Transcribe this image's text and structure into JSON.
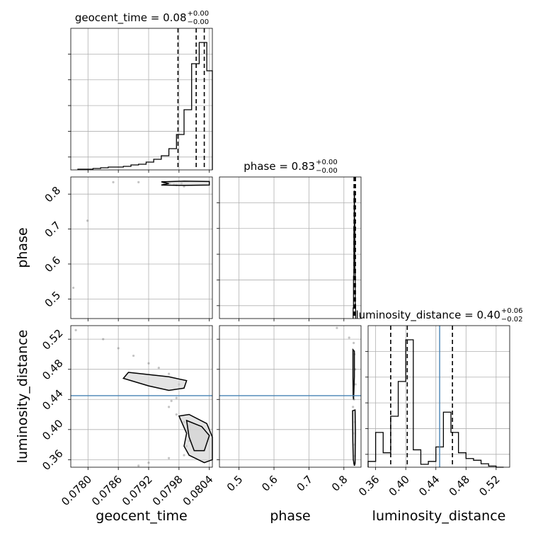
{
  "chart_data": {
    "type": "corner",
    "parameters": [
      "geocent_time",
      "phase",
      "luminosity_distance"
    ],
    "axis_labels": {
      "geocent_time": "geocent_time",
      "phase": "phase",
      "luminosity_distance": "luminosity_distance"
    },
    "ranges": {
      "geocent_time": [
        0.07766,
        0.08046
      ],
      "phase": [
        0.444,
        0.849
      ],
      "luminosity_distance": [
        0.35,
        0.538
      ]
    },
    "ticks": {
      "geocent_time": {
        "values": [
          0.078,
          0.0786,
          0.0792,
          0.0798,
          0.0804
        ],
        "labels": [
          "0.0780",
          "0.0786",
          "0.0792",
          "0.0798",
          "0.0804"
        ]
      },
      "phase": {
        "values": [
          0.5,
          0.6,
          0.7,
          0.8
        ],
        "labels": [
          "0.5",
          "0.6",
          "0.7",
          "0.8"
        ]
      },
      "luminosity_distance": {
        "values": [
          0.36,
          0.4,
          0.44,
          0.48,
          0.52
        ],
        "labels": [
          "0.36",
          "0.40",
          "0.44",
          "0.48",
          "0.52"
        ]
      }
    },
    "titles": {
      "geocent_time": {
        "main": "geocent_time = 0.08",
        "plus": "+0.00",
        "minus": "−0.00"
      },
      "phase": {
        "main": "phase = 0.83",
        "plus": "+0.00",
        "minus": "−0.00"
      },
      "luminosity_distance": {
        "main": "luminosity_distance = 0.40",
        "plus": "+0.06",
        "minus": "−0.02"
      }
    },
    "quantiles": {
      "geocent_time": [
        0.07978,
        0.08014,
        0.0803
      ],
      "phase": [
        0.829,
        0.831,
        0.833
      ],
      "luminosity_distance": [
        0.38,
        0.402,
        0.462
      ]
    },
    "truths": {
      "luminosity_distance": 0.445
    },
    "histograms": {
      "geocent_time": {
        "bin_edges": [
          0.0778,
          0.07795,
          0.0781,
          0.07825,
          0.0784,
          0.07855,
          0.0787,
          0.07885,
          0.079,
          0.07915,
          0.0793,
          0.07945,
          0.0796,
          0.07975,
          0.0799,
          0.08005,
          0.0802,
          0.08035,
          0.0805
        ],
        "counts": [
          1,
          1,
          2,
          3,
          4,
          4,
          5,
          7,
          8,
          11,
          15,
          20,
          30,
          50,
          85,
          150,
          180,
          140
        ]
      },
      "phase": {
        "bin_edges": [
          0.8265,
          0.8275,
          0.8285,
          0.8295,
          0.8305,
          0.8315,
          0.8325,
          0.8335
        ],
        "counts": [
          15,
          60,
          130,
          180,
          140,
          70,
          20
        ]
      },
      "luminosity_distance": {
        "bin_edges": [
          0.35,
          0.36,
          0.37,
          0.38,
          0.39,
          0.4,
          0.41,
          0.42,
          0.43,
          0.44,
          0.45,
          0.46,
          0.47,
          0.48,
          0.49,
          0.5,
          0.51,
          0.52,
          0.53
        ],
        "counts": [
          10,
          60,
          25,
          88,
          148,
          220,
          30,
          5,
          10,
          35,
          95,
          60,
          25,
          15,
          12,
          6,
          2,
          0
        ]
      }
    },
    "scatter": {
      "geocent_time__phase": [
        [
          0.07962,
          0.83
        ],
        [
          0.07975,
          0.826
        ],
        [
          0.07799,
          0.724
        ],
        [
          0.07771,
          0.532
        ],
        [
          0.07985,
          0.831
        ],
        [
          0.0795,
          0.832
        ],
        [
          0.079,
          0.834
        ],
        [
          0.0785,
          0.834
        ],
        [
          0.0799,
          0.822
        ],
        [
          0.0797,
          0.827
        ]
      ],
      "geocent_time__luminosity_distance": [
        [
          0.07776,
          0.532
        ],
        [
          0.0783,
          0.52
        ],
        [
          0.0786,
          0.508
        ],
        [
          0.0789,
          0.498
        ],
        [
          0.0792,
          0.488
        ],
        [
          0.0794,
          0.482
        ],
        [
          0.0796,
          0.474
        ],
        [
          0.0798,
          0.46
        ],
        [
          0.07975,
          0.442
        ],
        [
          0.07965,
          0.438
        ],
        [
          0.0796,
          0.43
        ],
        [
          0.07975,
          0.42
        ],
        [
          0.0799,
          0.41
        ],
        [
          0.07995,
          0.398
        ],
        [
          0.08,
          0.385
        ],
        [
          0.07995,
          0.378
        ],
        [
          0.0799,
          0.366
        ],
        [
          0.0796,
          0.362
        ],
        [
          0.0792,
          0.356
        ],
        [
          0.079,
          0.352
        ]
      ],
      "phase__luminosity_distance": [
        [
          0.78,
          0.535
        ],
        [
          0.815,
          0.522
        ],
        [
          0.828,
          0.515
        ],
        [
          0.83,
          0.5
        ],
        [
          0.832,
          0.48
        ],
        [
          0.833,
          0.46
        ],
        [
          0.829,
          0.44
        ],
        [
          0.826,
          0.43
        ],
        [
          0.831,
          0.41
        ],
        [
          0.828,
          0.395
        ],
        [
          0.83,
          0.38
        ],
        [
          0.831,
          0.365
        ],
        [
          0.829,
          0.355
        ]
      ]
    },
    "contours": {
      "geocent_time__phase": [
        [
          [
            0.07945,
            0.826
          ],
          [
            0.0799,
            0.825
          ],
          [
            0.0804,
            0.826
          ],
          [
            0.0804,
            0.836
          ],
          [
            0.0799,
            0.837
          ],
          [
            0.07945,
            0.835
          ],
          [
            0.0796,
            0.83
          ],
          [
            0.07945,
            0.826
          ]
        ]
      ],
      "geocent_time__luminosity_distance": [
        [
          [
            0.0788,
            0.476
          ],
          [
            0.0796,
            0.47
          ],
          [
            0.07995,
            0.465
          ],
          [
            0.0799,
            0.455
          ],
          [
            0.0796,
            0.452
          ],
          [
            0.0792,
            0.458
          ],
          [
            0.0787,
            0.468
          ],
          [
            0.0788,
            0.476
          ]
        ],
        [
          [
            0.0798,
            0.418
          ],
          [
            0.08,
            0.42
          ],
          [
            0.08035,
            0.408
          ],
          [
            0.08046,
            0.39
          ],
          [
            0.08046,
            0.36
          ],
          [
            0.0803,
            0.356
          ],
          [
            0.08,
            0.366
          ],
          [
            0.0799,
            0.378
          ],
          [
            0.07995,
            0.395
          ],
          [
            0.0798,
            0.418
          ]
        ],
        [
          [
            0.07995,
            0.412
          ],
          [
            0.08025,
            0.404
          ],
          [
            0.0804,
            0.392
          ],
          [
            0.0803,
            0.372
          ],
          [
            0.0801,
            0.372
          ],
          [
            0.08,
            0.39
          ],
          [
            0.07995,
            0.412
          ]
        ]
      ],
      "phase__luminosity_distance": [
        [
          [
            0.826,
            0.506
          ],
          [
            0.83,
            0.504
          ],
          [
            0.83,
            0.47
          ],
          [
            0.8285,
            0.45
          ],
          [
            0.8275,
            0.44
          ],
          [
            0.8265,
            0.445
          ],
          [
            0.826,
            0.47
          ],
          [
            0.826,
            0.506
          ]
        ],
        [
          [
            0.825,
            0.425
          ],
          [
            0.832,
            0.426
          ],
          [
            0.833,
            0.395
          ],
          [
            0.832,
            0.355
          ],
          [
            0.83,
            0.352
          ],
          [
            0.827,
            0.36
          ],
          [
            0.8255,
            0.385
          ],
          [
            0.825,
            0.425
          ]
        ]
      ]
    },
    "colors": {
      "line": "#000000",
      "truth": "#4682b4",
      "grid": "#b0b0b0",
      "contour_fill": "#d0d0d0",
      "density_dark": "#333333"
    },
    "grid": true
  }
}
